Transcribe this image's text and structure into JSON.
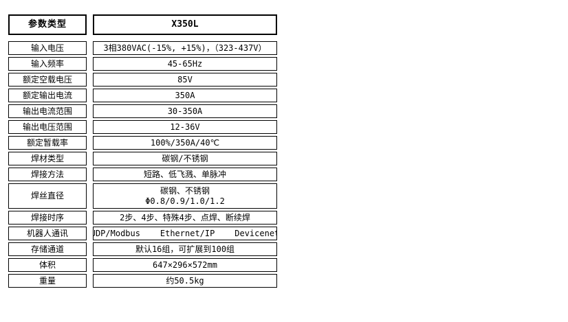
{
  "table": {
    "header": {
      "param_label": "参数类型",
      "model": "X350L"
    },
    "rows": [
      {
        "label": "输入电压",
        "value": "3相380VAC(-15%, +15%)，（323-437V）"
      },
      {
        "label": "输入频率",
        "value": "45-65Hz"
      },
      {
        "label": "额定空载电压",
        "value": "85V"
      },
      {
        "label": "额定输出电流",
        "value": "350A"
      },
      {
        "label": "输出电流范围",
        "value": "30-350A"
      },
      {
        "label": "输出电压范围",
        "value": "12-36V"
      },
      {
        "label": "额定暂载率",
        "value": "100%/350A/40℃"
      },
      {
        "label": "焊材类型",
        "value": "碳钢/不锈钢"
      },
      {
        "label": "焊接方法",
        "value": "短路、低飞溅、单脉冲"
      },
      {
        "label": "焊丝直径",
        "value1": "碳钢、不锈钢",
        "value2": "Φ0.8/0.9/1.0/1.2"
      },
      {
        "label": "焊接时序",
        "value": "2步、4步、特殊4步、点焊、断续焊"
      },
      {
        "label": "机器人通讯",
        "value": "UDP/Modbus    Ethernet/IP    Devicenet"
      },
      {
        "label": "存储通道",
        "value": "默认16组，可扩展到100组"
      },
      {
        "label": "体积",
        "value": "647×296×572mm"
      },
      {
        "label": "重量",
        "value": "约50.5kg"
      }
    ]
  }
}
